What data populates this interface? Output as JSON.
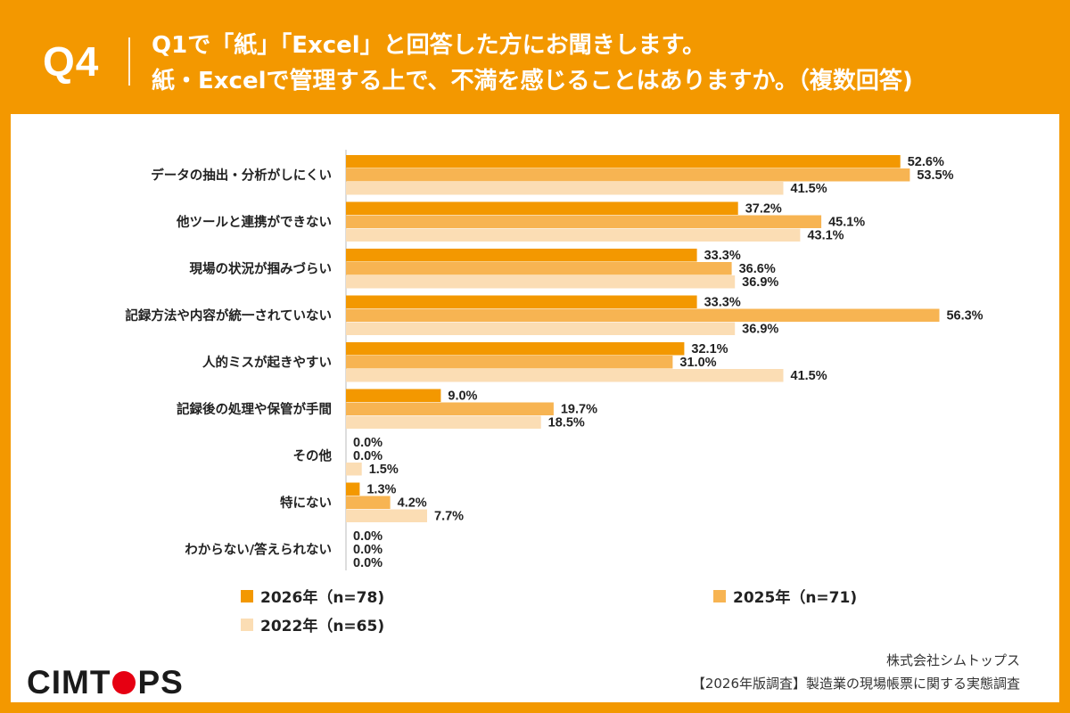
{
  "header": {
    "question_no": "Q4",
    "line1": "Q1で「紙」「Excel」と回答した方にお聞きします。",
    "line2": "紙・Excelで管理する上で、不満を感じることはありますか。（複数回答)"
  },
  "colors": {
    "background": "#F39800",
    "series_2026": "#F39800",
    "series_2025": "#F7B452",
    "series_2022": "#FBDDB4",
    "logo_dot": "#E60012"
  },
  "chart_data": {
    "type": "bar",
    "orientation": "horizontal",
    "categories": [
      "データの抽出・分析がしにくい",
      "他ツールと連携ができない",
      "現場の状況が掴みづらい",
      "記録方法や内容が統一されていない",
      "人的ミスが起きやすい",
      "記録後の処理や保管が手間",
      "その他",
      "特にない",
      "わからない/答えられない"
    ],
    "series": [
      {
        "name": "2026年（n=78)",
        "values": [
          52.6,
          37.2,
          33.3,
          33.3,
          32.1,
          9.0,
          0.0,
          1.3,
          0.0
        ]
      },
      {
        "name": "2025年（n=71)",
        "values": [
          53.5,
          45.1,
          36.6,
          56.3,
          31.0,
          19.7,
          0.0,
          4.2,
          0.0
        ]
      },
      {
        "name": "2022年（n=65)",
        "values": [
          41.5,
          43.1,
          36.9,
          36.9,
          41.5,
          18.5,
          1.5,
          7.7,
          0.0
        ]
      }
    ],
    "value_suffix": "%",
    "xlim": [
      0,
      60
    ],
    "grid": false,
    "legend_position": "bottom-left"
  },
  "footer": {
    "logo_part1": "CIM",
    "logo_part2": "T",
    "logo_part3": "PS",
    "company": "株式会社シムトップス",
    "source": "【2026年版調査】製造業の現場帳票に関する実態調査"
  }
}
